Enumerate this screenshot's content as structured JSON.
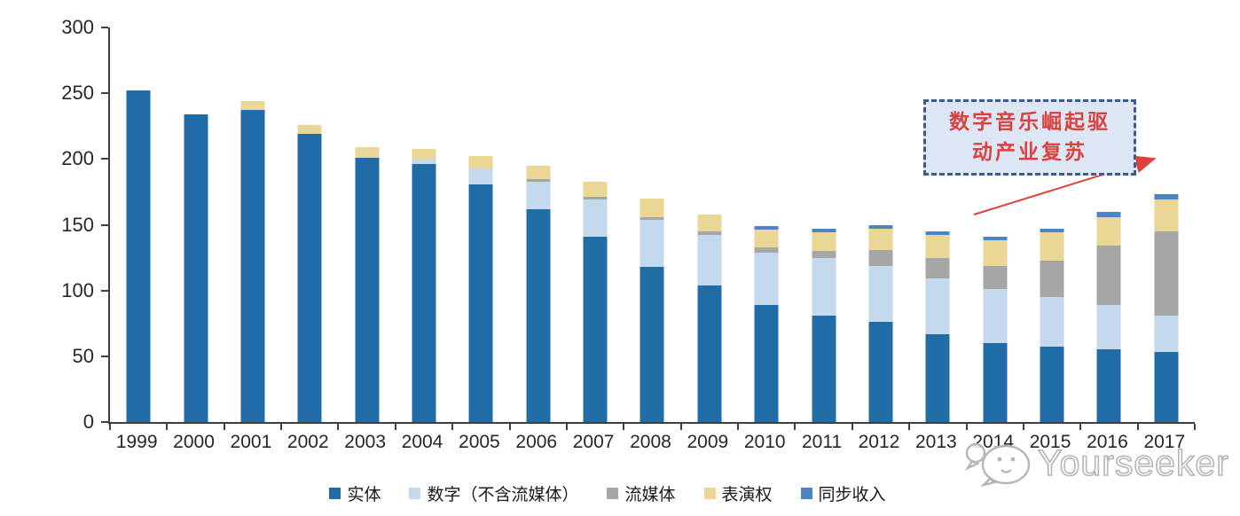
{
  "chart_data": {
    "type": "bar",
    "variant": "stacked",
    "title": "",
    "xlabel": "",
    "ylabel": "",
    "ylim": [
      0,
      300
    ],
    "yticks": [
      0,
      50,
      100,
      150,
      200,
      250,
      300
    ],
    "grid": false,
    "legend_position": "bottom",
    "categories": [
      "1999",
      "2000",
      "2001",
      "2002",
      "2003",
      "2004",
      "2005",
      "2006",
      "2007",
      "2008",
      "2009",
      "2010",
      "2011",
      "2012",
      "2013",
      "2014",
      "2015",
      "2016",
      "2017"
    ],
    "series": [
      {
        "name": "实体",
        "color": "#1F6CA7",
        "values": [
          252,
          234,
          237,
          219,
          201,
          196,
          181,
          162,
          141,
          118,
          104,
          89,
          81,
          76,
          67,
          60,
          57,
          55,
          53
        ]
      },
      {
        "name": "数字（不含流媒体）",
        "color": "#C4D9EE",
        "values": [
          0,
          0,
          0,
          0,
          0,
          4,
          12,
          21,
          28,
          36,
          38,
          40,
          44,
          43,
          42,
          41,
          38,
          34,
          28
        ]
      },
      {
        "name": "流媒体",
        "color": "#A6A6A6",
        "values": [
          0,
          0,
          0,
          0,
          0,
          0,
          0,
          2,
          2,
          2,
          3,
          4,
          5,
          12,
          16,
          18,
          28,
          45,
          64
        ]
      },
      {
        "name": "表演权",
        "color": "#EBD795",
        "values": [
          0,
          0,
          7,
          7,
          8,
          8,
          9,
          10,
          12,
          14,
          13,
          13,
          14,
          16,
          17,
          19,
          21,
          22,
          24
        ]
      },
      {
        "name": "同步收入",
        "color": "#4C86C2",
        "values": [
          0,
          0,
          0,
          0,
          0,
          0,
          0,
          0,
          0,
          0,
          0,
          3,
          3,
          3,
          3,
          3,
          3,
          4,
          4
        ]
      }
    ]
  },
  "annotation": {
    "line1": "数字音乐崛起驱",
    "line2": "动产业复苏",
    "box_fill": "#dce6f5",
    "border_color": "#3c5c90",
    "text_color": "#d9423f",
    "arrow_color": "#e0413d"
  },
  "watermark": {
    "text": "Yourseeker",
    "logo_icon": "chat-bubble-cat-logo",
    "color": "#b5b5b5"
  }
}
